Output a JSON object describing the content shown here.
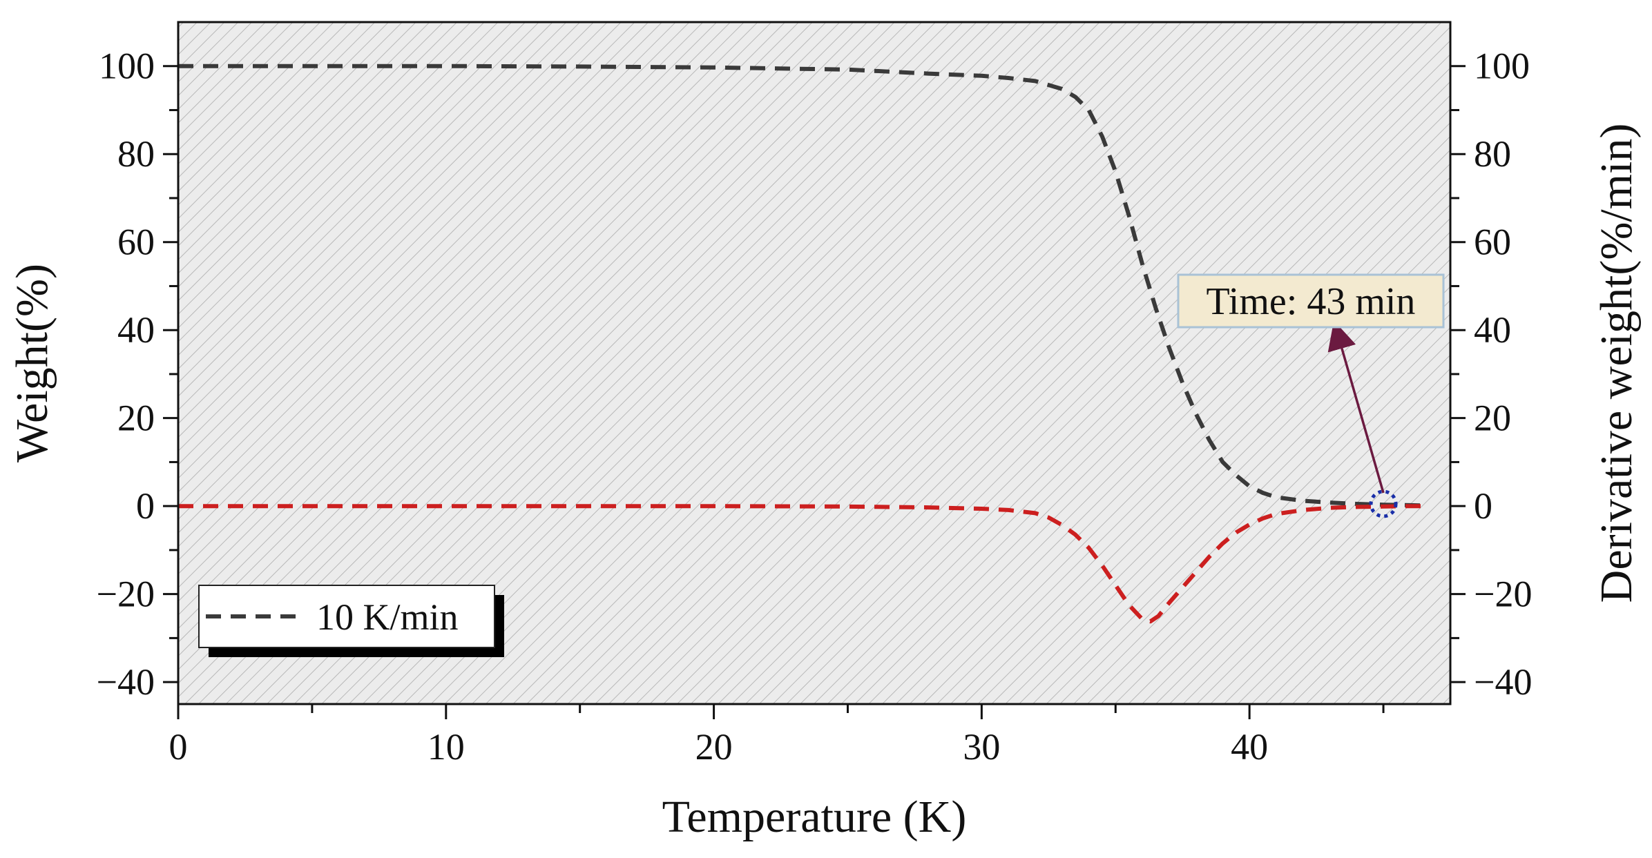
{
  "chart_data": {
    "type": "line",
    "xlabel": "Temperature (K)",
    "ylabel": "Weight(%)",
    "y2label": "Derivative weight(%/min)",
    "xlim": [
      0,
      47.5
    ],
    "ylim": [
      -45,
      110
    ],
    "y2lim": [
      -45,
      110
    ],
    "xticks": [
      0,
      10,
      20,
      30,
      40
    ],
    "yticks": [
      -40,
      -20,
      0,
      20,
      40,
      60,
      80,
      100
    ],
    "y2ticks": [
      -40,
      -20,
      0,
      20,
      40,
      60,
      80,
      100
    ],
    "grid": false,
    "background": "hatched-gray",
    "legend": {
      "position": "bottom-left",
      "entries": [
        "10 K/min"
      ]
    },
    "series": [
      {
        "name": "10 K/min",
        "axis": "left",
        "color": "#3a3a3a",
        "style": "dashed",
        "x": [
          0,
          5,
          10,
          15,
          20,
          25,
          28,
          30,
          31,
          32,
          33,
          33.5,
          34,
          34.5,
          35,
          35.5,
          36,
          36.5,
          37,
          37.5,
          38,
          38.5,
          39,
          39.5,
          40,
          40.5,
          41,
          42,
          43,
          44,
          45,
          46,
          46.7
        ],
        "y": [
          100,
          100,
          100,
          99.9,
          99.7,
          99.2,
          98.3,
          97.8,
          97.3,
          96.6,
          94.8,
          93.0,
          90.0,
          84.0,
          76.0,
          66.0,
          55.0,
          45.0,
          36.0,
          28.0,
          21.0,
          15.0,
          10.0,
          7.0,
          4.5,
          3.0,
          2.0,
          1.2,
          0.8,
          0.5,
          0.3,
          0.2,
          0.1
        ]
      },
      {
        "name": "",
        "axis": "right",
        "color": "#cc1f1f",
        "style": "dashed",
        "x": [
          0,
          10,
          20,
          25,
          28,
          30,
          31,
          32,
          32.5,
          33,
          33.5,
          34,
          34.5,
          35,
          35.5,
          36,
          36.3,
          36.6,
          37,
          37.5,
          38,
          38.5,
          39,
          39.5,
          40,
          40.5,
          41,
          42,
          43,
          44,
          45,
          46,
          46.7
        ],
        "y": [
          0,
          0,
          0,
          -0.1,
          -0.3,
          -0.6,
          -0.9,
          -1.6,
          -2.6,
          -4.3,
          -6.5,
          -9.5,
          -13.5,
          -18.0,
          -22.5,
          -25.7,
          -26.2,
          -25.0,
          -22.0,
          -18.5,
          -15.0,
          -11.5,
          -8.5,
          -6.0,
          -4.2,
          -2.8,
          -1.8,
          -0.9,
          -0.4,
          -0.2,
          -0.1,
          0,
          0
        ]
      }
    ],
    "annotations": [
      {
        "text": "Time: 43 min",
        "arrow_from": [
          45.0,
          0.5
        ],
        "arrow_to": [
          43.3,
          39.0
        ],
        "marker": "dotted-circle",
        "marker_at": [
          45.0,
          0.5
        ]
      }
    ],
    "colors": {
      "background": "#ececec",
      "hatch": "#b8b8b8",
      "arrow": "#6b1a40",
      "marker": "#1a2fa8",
      "annot_fill": "#f3ead0",
      "annot_border": "#a9c2d6"
    }
  }
}
